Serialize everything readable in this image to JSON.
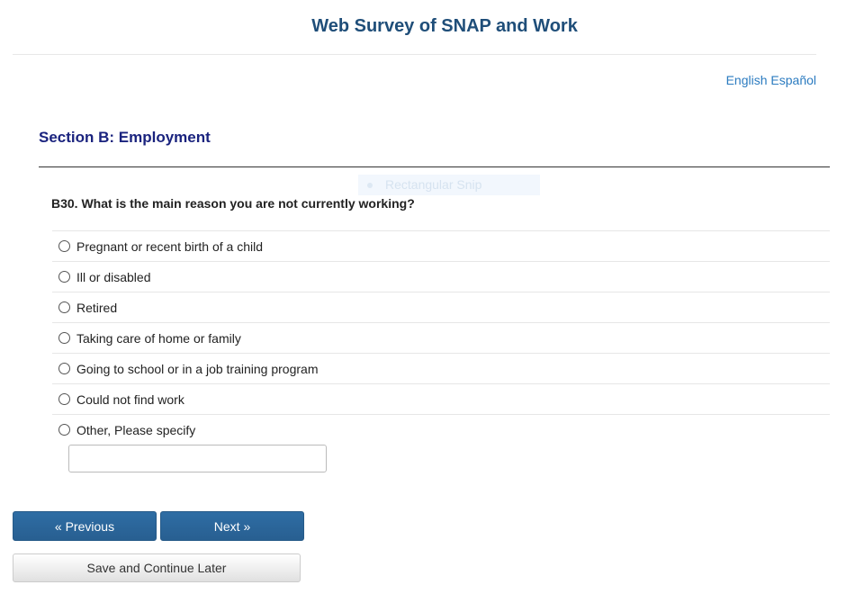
{
  "header": {
    "title": "Web Survey of SNAP and Work"
  },
  "language": {
    "english": "English",
    "spanish": "Español"
  },
  "section": {
    "title": "Section B: Employment"
  },
  "overlay": {
    "label": "Rectangular Snip"
  },
  "question": {
    "text": "B30. What is the main reason you are not currently working?",
    "options": [
      {
        "label": "Pregnant or recent birth of a child"
      },
      {
        "label": "Ill or disabled"
      },
      {
        "label": "Retired"
      },
      {
        "label": "Taking care of home or family"
      },
      {
        "label": "Going to school or in a job training program"
      },
      {
        "label": "Could not find work"
      },
      {
        "label": "Other, Please specify"
      }
    ],
    "other_value": ""
  },
  "nav": {
    "previous": "« Previous",
    "next": "Next »",
    "save": "Save and Continue Later"
  }
}
